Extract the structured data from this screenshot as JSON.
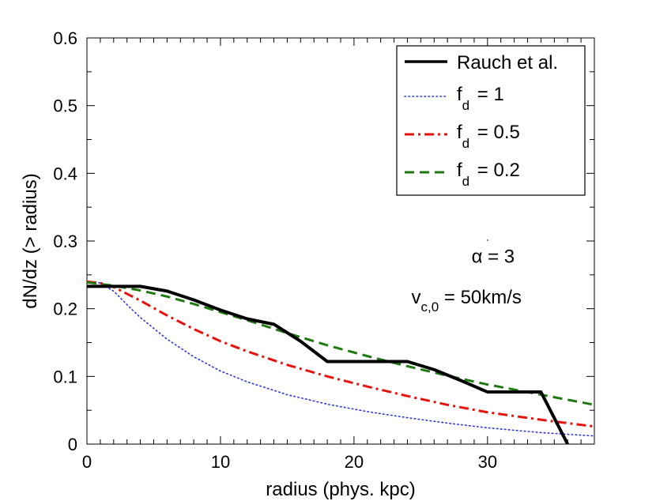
{
  "chart_data": {
    "type": "line",
    "xlabel": "radius (phys. kpc)",
    "ylabel": "dN/dz (> radius)",
    "xlim": [
      0,
      38
    ],
    "ylim": [
      0,
      0.6
    ],
    "xticks": [
      0,
      10,
      20,
      30
    ],
    "xtick_labels": [
      "0",
      "10",
      "20",
      "30"
    ],
    "yticks": [
      0,
      0.1,
      0.2,
      0.3,
      0.4,
      0.5,
      0.6
    ],
    "ytick_labels": [
      "0",
      "0.1",
      "0.2",
      "0.3",
      "0.4",
      "0.5",
      "0.6"
    ],
    "x_minor_step": 1,
    "legend_position": "top-right",
    "series": [
      {
        "name": "Rauch et al.",
        "color": "#000000",
        "style": "solid",
        "x": [
          0,
          4,
          6,
          8,
          10,
          12,
          14,
          16,
          18,
          20,
          22,
          24,
          26,
          28,
          30,
          32,
          34,
          36
        ],
        "y": [
          0.233,
          0.233,
          0.226,
          0.213,
          0.198,
          0.185,
          0.177,
          0.152,
          0.122,
          0.122,
          0.122,
          0.122,
          0.11,
          0.094,
          0.077,
          0.077,
          0.077,
          0.0
        ]
      },
      {
        "name_main": "f",
        "name_sub": "d",
        "name_value": " = 1",
        "color": "#2b35d8",
        "style": "dotted",
        "x": [
          0,
          1,
          2,
          3,
          4,
          6,
          8,
          10,
          12,
          15,
          18,
          21,
          24,
          27,
          30,
          34,
          38
        ],
        "y": [
          0.24,
          0.238,
          0.226,
          0.206,
          0.187,
          0.155,
          0.129,
          0.108,
          0.092,
          0.073,
          0.059,
          0.048,
          0.039,
          0.031,
          0.024,
          0.017,
          0.012
        ]
      },
      {
        "name_main": "f",
        "name_sub": "d",
        "name_value": " = 0.5",
        "color": "#e8120c",
        "style": "dashdot",
        "x": [
          0,
          1,
          2,
          3,
          4,
          6,
          8,
          10,
          12,
          15,
          18,
          21,
          24,
          27,
          30,
          34,
          38
        ],
        "y": [
          0.24,
          0.238,
          0.232,
          0.222,
          0.212,
          0.19,
          0.17,
          0.152,
          0.137,
          0.117,
          0.1,
          0.085,
          0.071,
          0.058,
          0.047,
          0.036,
          0.026
        ]
      },
      {
        "name_main": "f",
        "name_sub": "d",
        "name_value": " = 0.2",
        "color": "#1f7a12",
        "style": "dashed",
        "x": [
          0,
          2,
          4,
          6,
          8,
          10,
          12,
          15,
          18,
          21,
          24,
          27,
          30,
          34,
          38
        ],
        "y": [
          0.239,
          0.234,
          0.227,
          0.218,
          0.207,
          0.195,
          0.183,
          0.164,
          0.146,
          0.13,
          0.115,
          0.101,
          0.088,
          0.073,
          0.058
        ]
      }
    ],
    "annotations": [
      {
        "text": "α = 3",
        "x": 28.8,
        "y": 0.268
      },
      {
        "main": "v",
        "sub": "c,0",
        "rest": " = 50km/s",
        "x": 24.3,
        "y": 0.208
      }
    ]
  }
}
